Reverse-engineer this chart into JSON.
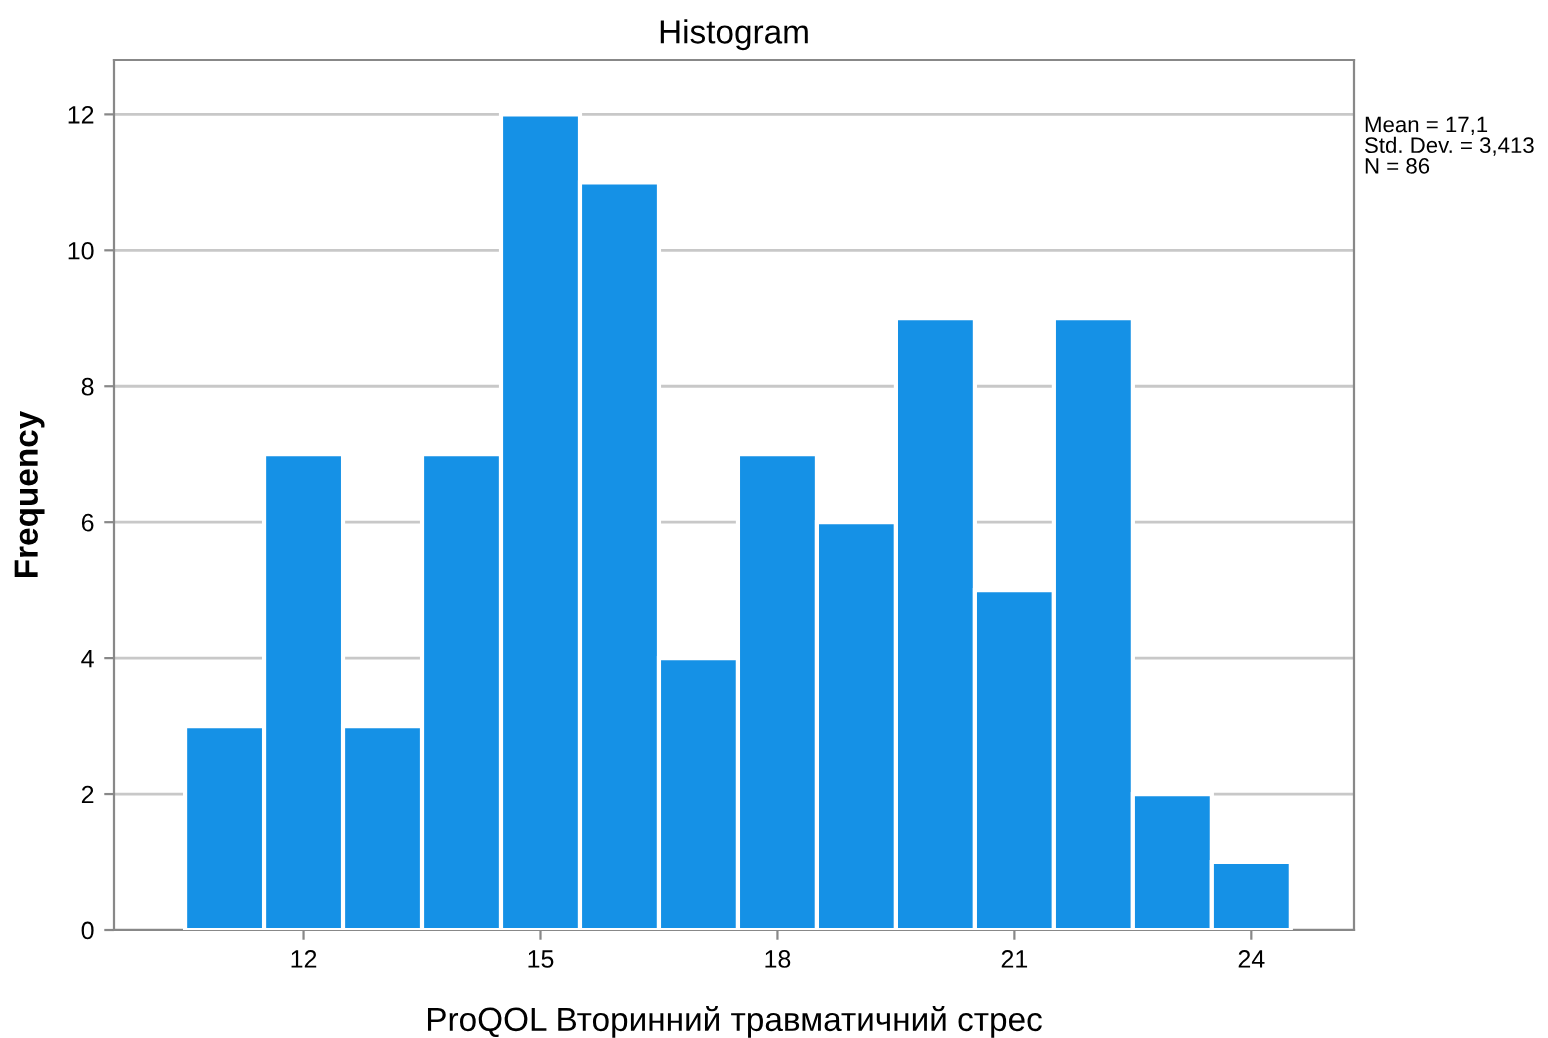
{
  "chart_data": {
    "type": "histogram",
    "title": "Histogram",
    "xlabel": "ProQOL Вторинний травматичний стрес",
    "ylabel": "Frequency",
    "bins": [
      10.5,
      11.5,
      12.5,
      13.5,
      14.5,
      15.5,
      16.5,
      17.5,
      18.5,
      19.5,
      20.5,
      21.5,
      22.5,
      23.5,
      24.5
    ],
    "values": [
      3,
      7,
      3,
      7,
      12,
      11,
      4,
      7,
      6,
      9,
      5,
      9,
      2,
      1
    ],
    "color": "#1591e6",
    "xlim": [
      9.6,
      25.3
    ],
    "xticks": [
      12,
      15,
      18,
      21,
      24
    ],
    "ylim": [
      0,
      12.8
    ],
    "yticks": [
      0,
      2,
      4,
      6,
      8,
      10,
      12
    ],
    "grid": "y",
    "annotations": [
      "Mean = 17,1\nStd. Dev. = 3,413\nN = 86"
    ]
  }
}
